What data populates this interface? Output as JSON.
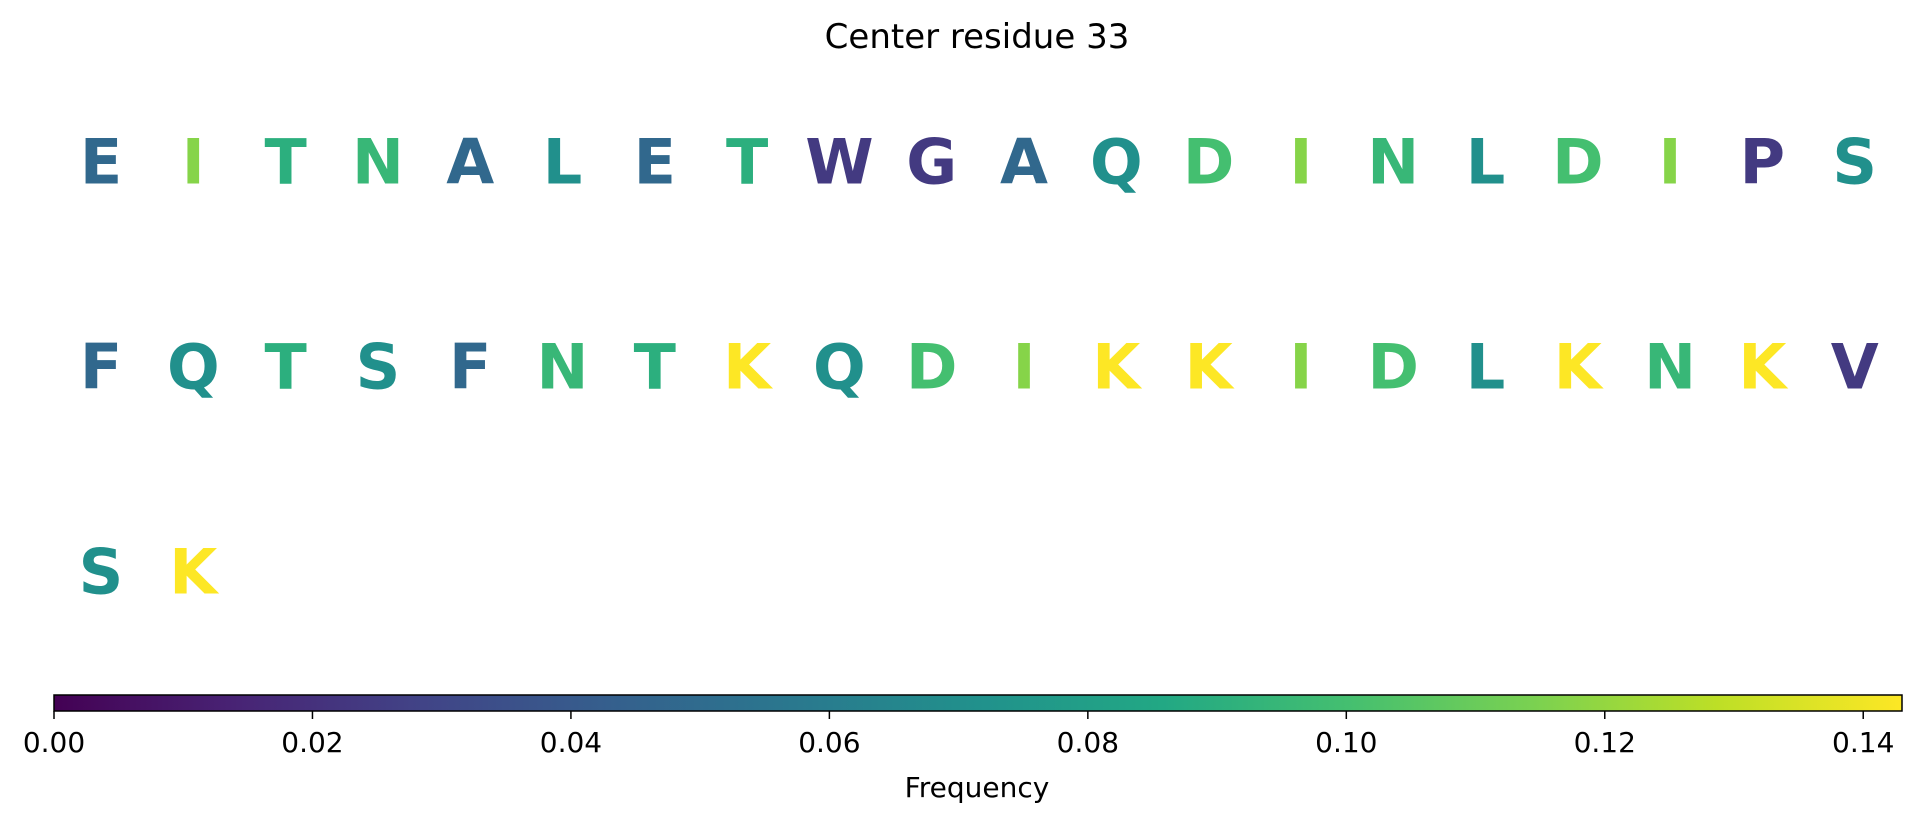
{
  "chart_data": {
    "type": "heatmap",
    "title": "Center residue 33",
    "colorbar": {
      "label": "Frequency",
      "range": [
        0.0,
        0.143
      ],
      "ticks": [
        "0.00",
        "0.02",
        "0.04",
        "0.06",
        "0.08",
        "0.10",
        "0.12",
        "0.14"
      ],
      "colormap": "viridis",
      "orientation": "horizontal",
      "placement": "bottom"
    },
    "residues_per_row": 20,
    "residues": [
      {
        "letter": "E",
        "value": 0.048
      },
      {
        "letter": "I",
        "value": 0.117
      },
      {
        "letter": "T",
        "value": 0.09
      },
      {
        "letter": "N",
        "value": 0.095
      },
      {
        "letter": "A",
        "value": 0.048
      },
      {
        "letter": "L",
        "value": 0.071
      },
      {
        "letter": "E",
        "value": 0.048
      },
      {
        "letter": "T",
        "value": 0.09
      },
      {
        "letter": "W",
        "value": 0.024
      },
      {
        "letter": "G",
        "value": 0.024
      },
      {
        "letter": "A",
        "value": 0.048
      },
      {
        "letter": "Q",
        "value": 0.071
      },
      {
        "letter": "D",
        "value": 0.1
      },
      {
        "letter": "I",
        "value": 0.117
      },
      {
        "letter": "N",
        "value": 0.095
      },
      {
        "letter": "L",
        "value": 0.071
      },
      {
        "letter": "D",
        "value": 0.1
      },
      {
        "letter": "I",
        "value": 0.117
      },
      {
        "letter": "P",
        "value": 0.024
      },
      {
        "letter": "S",
        "value": 0.071
      },
      {
        "letter": "F",
        "value": 0.048
      },
      {
        "letter": "Q",
        "value": 0.071
      },
      {
        "letter": "T",
        "value": 0.09
      },
      {
        "letter": "S",
        "value": 0.071
      },
      {
        "letter": "F",
        "value": 0.048
      },
      {
        "letter": "N",
        "value": 0.095
      },
      {
        "letter": "T",
        "value": 0.09
      },
      {
        "letter": "K",
        "value": 0.143
      },
      {
        "letter": "Q",
        "value": 0.071
      },
      {
        "letter": "D",
        "value": 0.1
      },
      {
        "letter": "I",
        "value": 0.117
      },
      {
        "letter": "K",
        "value": 0.143
      },
      {
        "letter": "K",
        "value": 0.143
      },
      {
        "letter": "I",
        "value": 0.117
      },
      {
        "letter": "D",
        "value": 0.1
      },
      {
        "letter": "L",
        "value": 0.071
      },
      {
        "letter": "K",
        "value": 0.143
      },
      {
        "letter": "N",
        "value": 0.095
      },
      {
        "letter": "K",
        "value": 0.143
      },
      {
        "letter": "V",
        "value": 0.024
      },
      {
        "letter": "S",
        "value": 0.071
      },
      {
        "letter": "K",
        "value": 0.143
      }
    ]
  }
}
